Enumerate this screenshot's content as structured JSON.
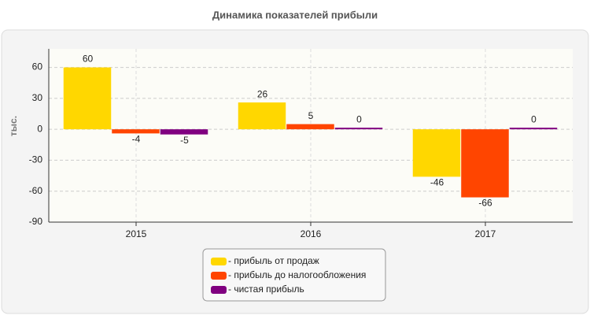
{
  "chart_data": {
    "type": "bar",
    "title": "Динамика показателей прибыли",
    "y_label": "тыс.",
    "categories": [
      "2015",
      "2016",
      "2017"
    ],
    "series": [
      {
        "name": "- прибыль от продаж",
        "color": "#ffd700",
        "values": [
          60,
          26,
          -46
        ]
      },
      {
        "name": "- прибыль до налогообложения",
        "color": "#ff4500",
        "values": [
          -4,
          5,
          -66
        ]
      },
      {
        "name": "- чистая прибыль",
        "color": "#800080",
        "values": [
          -5,
          0,
          0
        ]
      }
    ],
    "ylim": [
      -90,
      78
    ],
    "yticks": [
      -90,
      -60,
      -30,
      0,
      30,
      60
    ],
    "grid": true
  }
}
